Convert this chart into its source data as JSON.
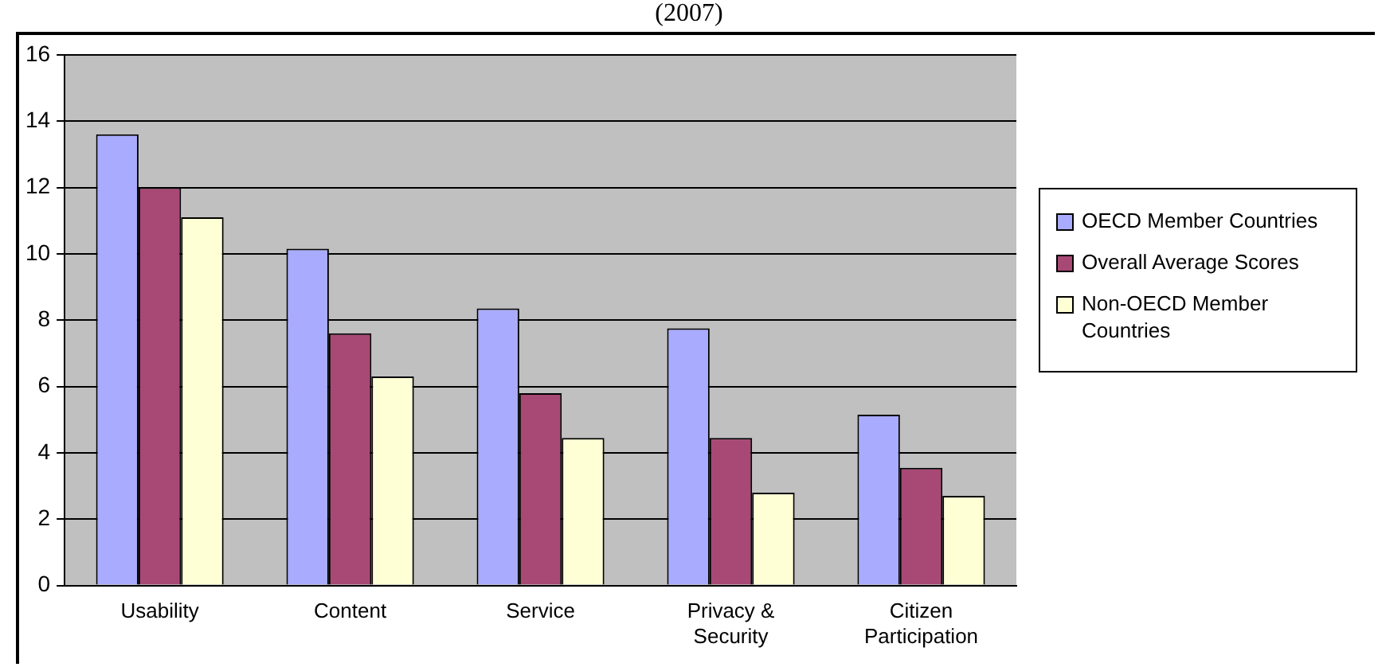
{
  "chart_data": {
    "type": "bar",
    "title": "(2007)",
    "categories": [
      "Usability",
      "Content",
      "Service",
      "Privacy & Security",
      "Citizen Participation"
    ],
    "series": [
      {
        "name": "OECD Member Countries",
        "color": "#a9abff",
        "values": [
          13.6,
          10.15,
          8.35,
          7.75,
          5.15
        ]
      },
      {
        "name": "Overall Average Scores",
        "color": "#a84875",
        "values": [
          12.0,
          7.6,
          5.8,
          4.45,
          3.55
        ]
      },
      {
        "name": "Non-OECD Member Countries",
        "color": "#ffffd6",
        "values": [
          11.1,
          6.3,
          4.45,
          2.8,
          2.7
        ]
      }
    ],
    "ylim": [
      0,
      16
    ],
    "yticks": [
      0,
      2,
      4,
      6,
      8,
      10,
      12,
      14,
      16
    ],
    "grid": "y",
    "legend": "right"
  }
}
